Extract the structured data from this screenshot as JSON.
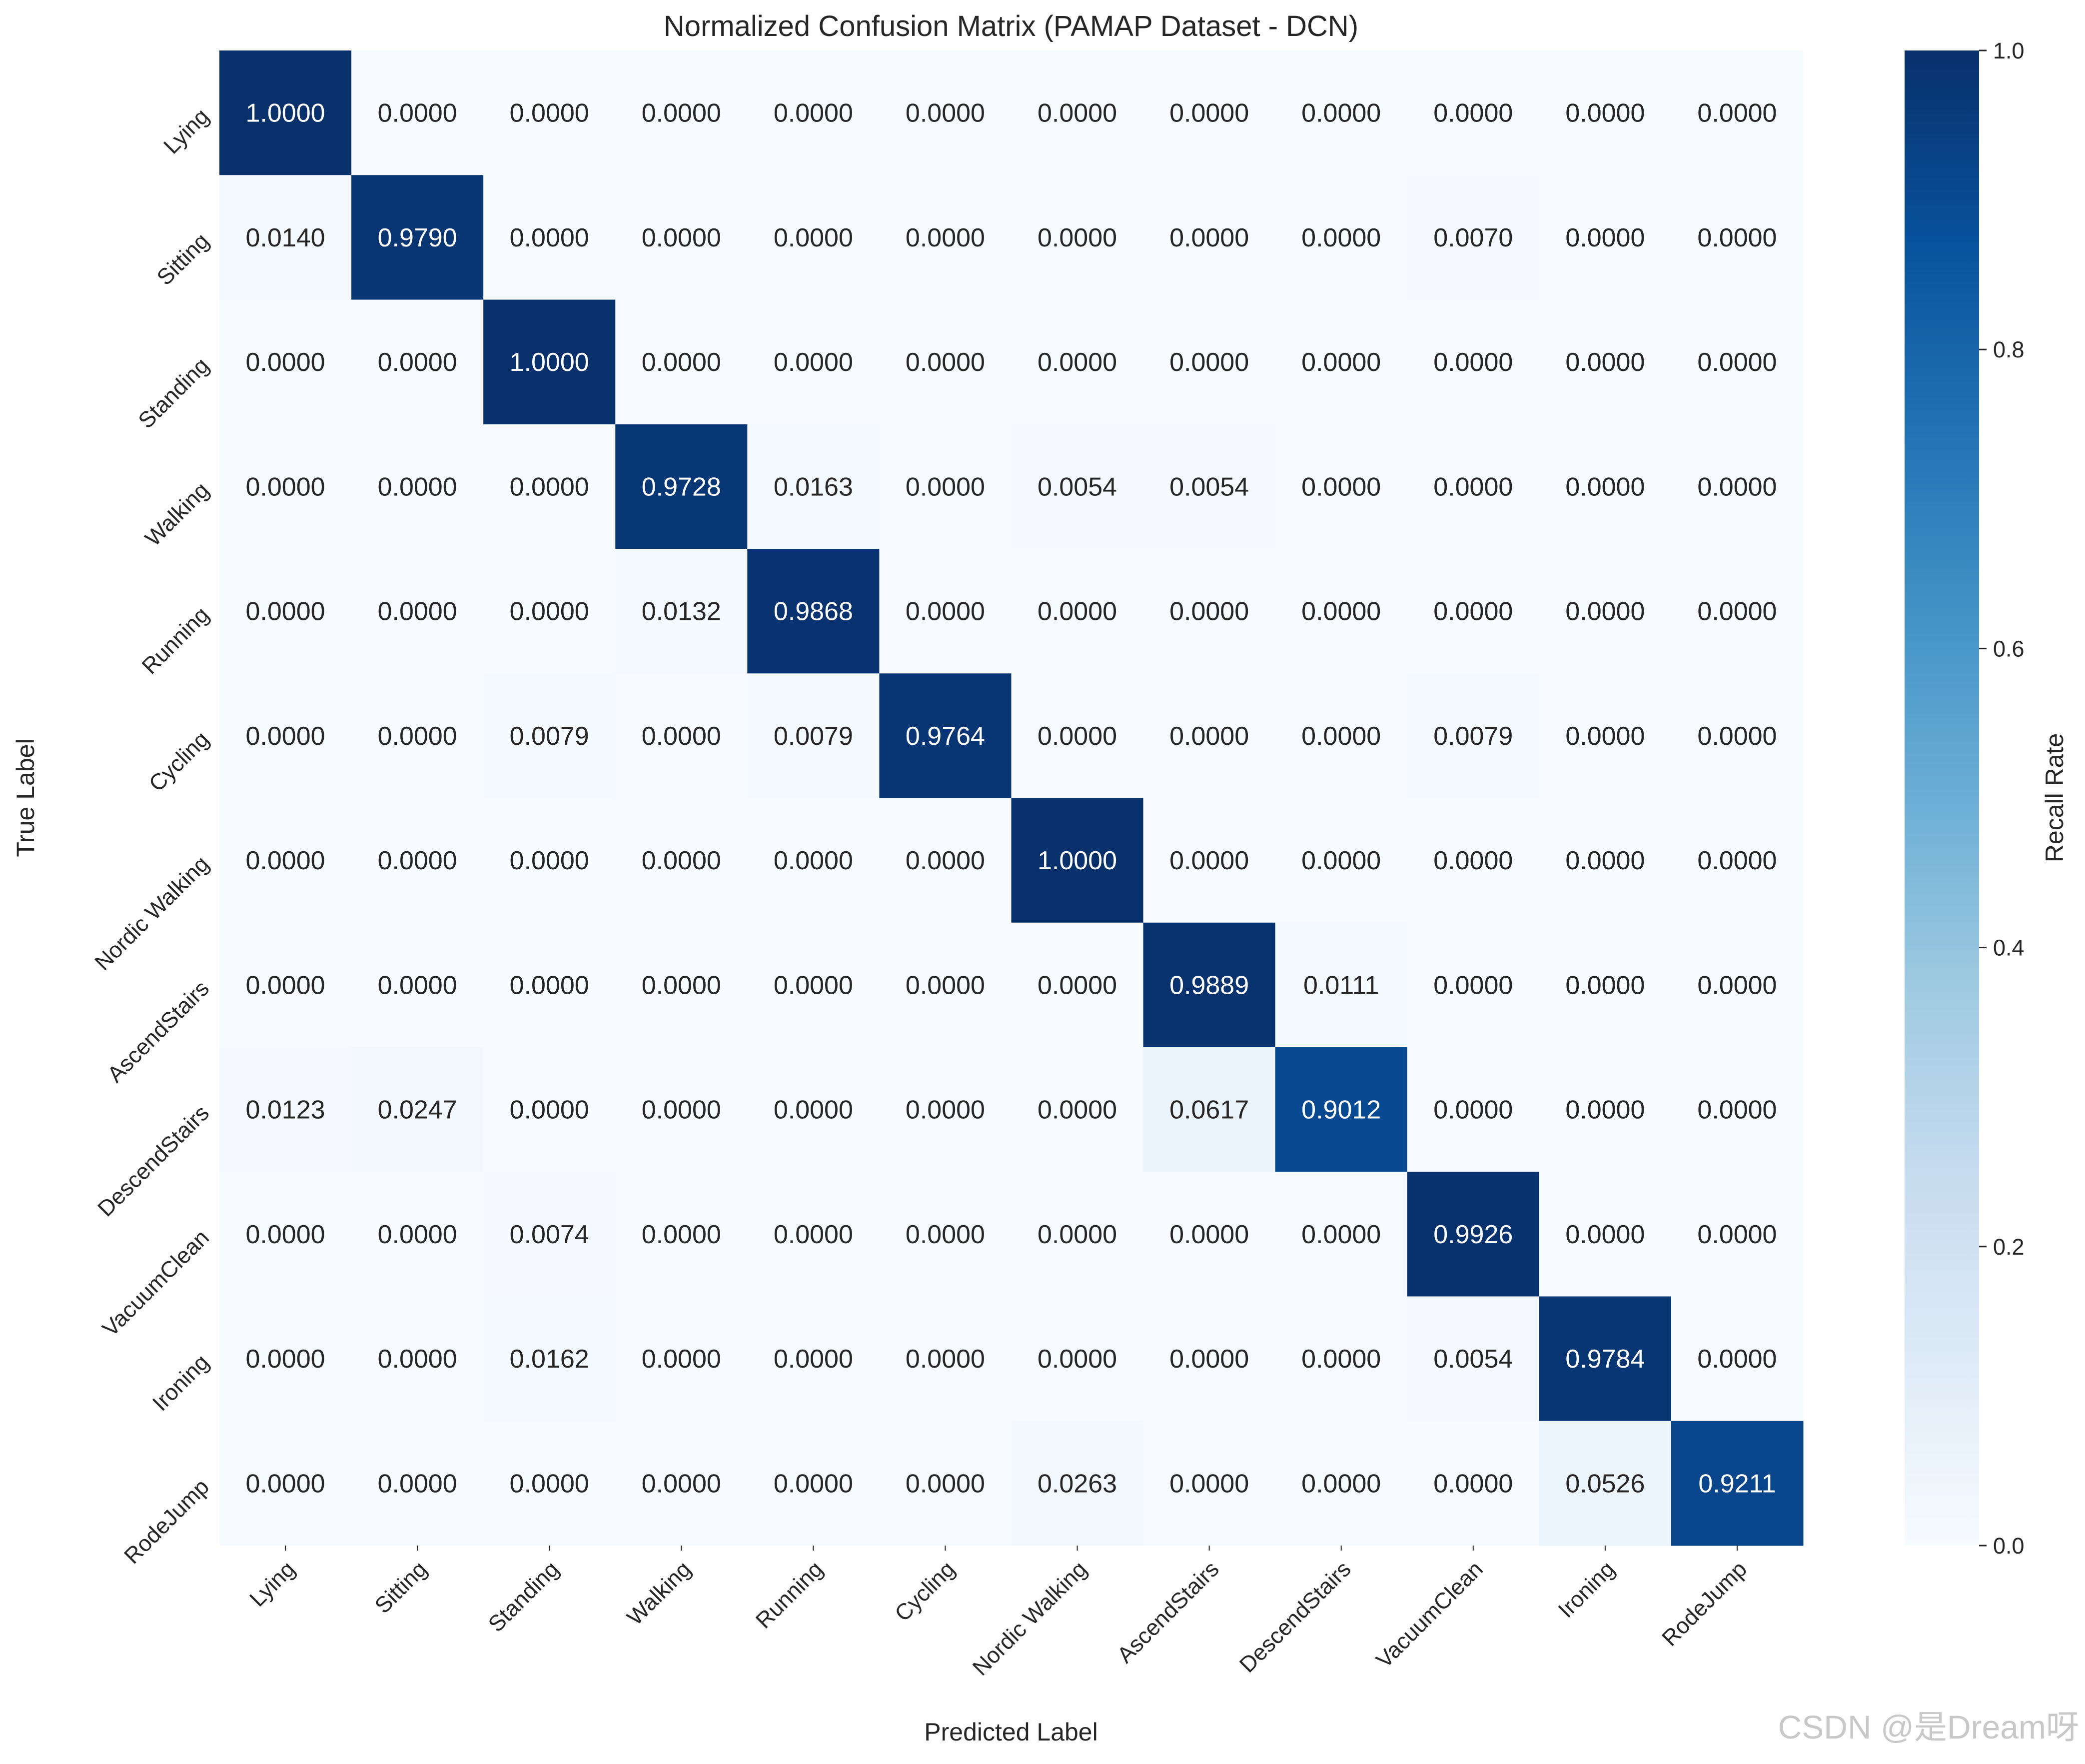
{
  "chart_data": {
    "type": "heatmap",
    "title": "Normalized Confusion Matrix (PAMAP Dataset - DCN)",
    "xlabel": "Predicted Label",
    "ylabel": "True Label",
    "colorbar_label": "Recall Rate",
    "colormap": "Blues",
    "vmin": 0.0,
    "vmax": 1.0,
    "colorbar_ticks": [
      "0.0",
      "0.2",
      "0.4",
      "0.6",
      "0.8",
      "1.0"
    ],
    "categories": [
      "Lying",
      "Sitting",
      "Standing",
      "Walking",
      "Running",
      "Cycling",
      "Nordic Walking",
      "AscendStairs",
      "DescendStairs",
      "VacuumClean",
      "Ironing",
      "RodeJump"
    ],
    "values": [
      [
        1.0,
        0.0,
        0.0,
        0.0,
        0.0,
        0.0,
        0.0,
        0.0,
        0.0,
        0.0,
        0.0,
        0.0
      ],
      [
        0.014,
        0.979,
        0.0,
        0.0,
        0.0,
        0.0,
        0.0,
        0.0,
        0.0,
        0.007,
        0.0,
        0.0
      ],
      [
        0.0,
        0.0,
        1.0,
        0.0,
        0.0,
        0.0,
        0.0,
        0.0,
        0.0,
        0.0,
        0.0,
        0.0
      ],
      [
        0.0,
        0.0,
        0.0,
        0.9728,
        0.0163,
        0.0,
        0.0054,
        0.0054,
        0.0,
        0.0,
        0.0,
        0.0
      ],
      [
        0.0,
        0.0,
        0.0,
        0.0132,
        0.9868,
        0.0,
        0.0,
        0.0,
        0.0,
        0.0,
        0.0,
        0.0
      ],
      [
        0.0,
        0.0,
        0.0079,
        0.0,
        0.0079,
        0.9764,
        0.0,
        0.0,
        0.0,
        0.0079,
        0.0,
        0.0
      ],
      [
        0.0,
        0.0,
        0.0,
        0.0,
        0.0,
        0.0,
        1.0,
        0.0,
        0.0,
        0.0,
        0.0,
        0.0
      ],
      [
        0.0,
        0.0,
        0.0,
        0.0,
        0.0,
        0.0,
        0.0,
        0.9889,
        0.0111,
        0.0,
        0.0,
        0.0
      ],
      [
        0.0123,
        0.0247,
        0.0,
        0.0,
        0.0,
        0.0,
        0.0,
        0.0617,
        0.9012,
        0.0,
        0.0,
        0.0
      ],
      [
        0.0,
        0.0,
        0.0074,
        0.0,
        0.0,
        0.0,
        0.0,
        0.0,
        0.0,
        0.9926,
        0.0,
        0.0
      ],
      [
        0.0,
        0.0,
        0.0162,
        0.0,
        0.0,
        0.0,
        0.0,
        0.0,
        0.0,
        0.0054,
        0.9784,
        0.0
      ],
      [
        0.0,
        0.0,
        0.0,
        0.0,
        0.0,
        0.0,
        0.0263,
        0.0,
        0.0,
        0.0,
        0.0526,
        0.9211
      ]
    ],
    "annotation_format": "4 decimals",
    "grid": false,
    "legend": "none"
  },
  "watermark": "CSDN @是Dream呀"
}
